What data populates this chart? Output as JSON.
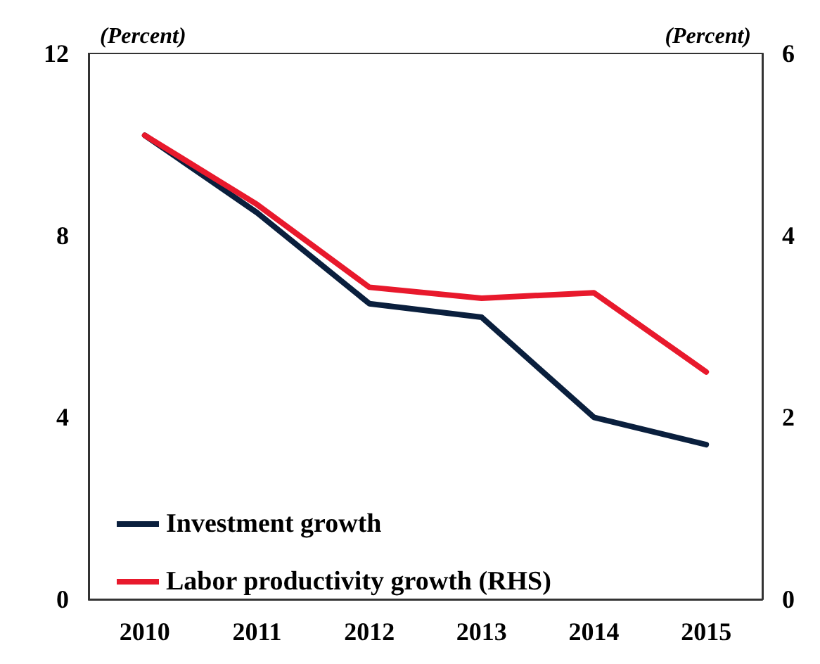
{
  "chart_data": {
    "type": "line",
    "ylabel": "(Percent)",
    "y2label": "(Percent)",
    "categories": [
      "2010",
      "2011",
      "2012",
      "2013",
      "2014",
      "2015"
    ],
    "series": [
      {
        "name": "Investment growth",
        "color": "#0a1f3d",
        "values": [
          10.2,
          8.5,
          6.5,
          6.2,
          4.0,
          3.4
        ]
      },
      {
        "name": "Labor productivity growth (RHS)",
        "color": "#e8192c",
        "axis": "y2",
        "values": [
          5.1,
          4.34,
          3.43,
          3.31,
          3.37,
          2.5
        ]
      }
    ],
    "ylim": [
      0,
      12
    ],
    "yticks": [
      0,
      4,
      8,
      12
    ],
    "y2lim": [
      0,
      6
    ],
    "y2ticks": [
      0,
      2,
      4,
      6
    ],
    "grid": false,
    "legend": "bottom left",
    "marker": "none",
    "line_style": "solid"
  }
}
